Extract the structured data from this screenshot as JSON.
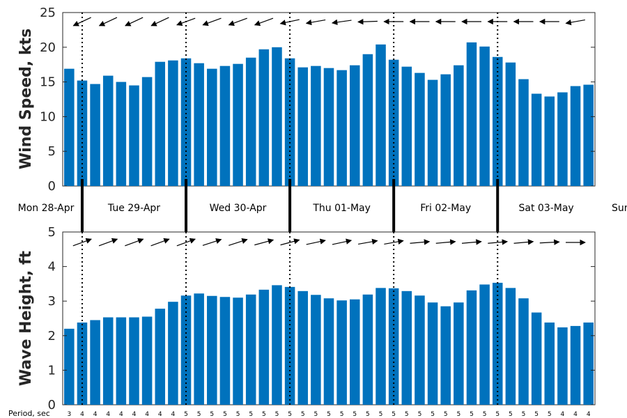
{
  "chart_data": [
    {
      "type": "bar",
      "ylabel": "Wind Speed, kts",
      "ylim": [
        0,
        25
      ],
      "yticks": [
        0,
        5,
        10,
        15,
        20,
        25
      ],
      "bar_color": "#0072BD",
      "values": [
        16.9,
        15.2,
        14.7,
        15.9,
        15.0,
        14.5,
        15.7,
        17.9,
        18.1,
        18.4,
        17.7,
        16.9,
        17.3,
        17.6,
        18.5,
        19.7,
        20.0,
        18.4,
        17.1,
        17.3,
        17.0,
        16.7,
        17.4,
        19.0,
        20.4,
        18.2,
        17.2,
        16.3,
        15.3,
        16.1,
        17.4,
        20.7,
        20.1,
        18.6,
        17.8,
        15.4,
        13.3,
        12.9,
        13.5,
        14.4,
        14.6
      ],
      "arrow_direction": "from east-northeast (arrows point left, turning horizontal later)",
      "arrow_angles_deg": [
        200,
        205,
        205,
        205,
        205,
        205,
        205,
        205,
        205,
        200,
        200,
        200,
        200,
        200,
        200,
        200,
        195,
        192,
        190,
        190,
        190,
        188,
        185,
        182,
        180,
        180,
        180,
        180,
        180,
        180,
        180,
        180,
        180,
        180,
        180,
        180,
        180,
        180,
        185,
        190,
        195
      ]
    },
    {
      "type": "bar",
      "ylabel": "Wave Height, ft",
      "ylim": [
        0,
        5
      ],
      "yticks": [
        0,
        1,
        2,
        3,
        4,
        5
      ],
      "bar_color": "#0072BD",
      "values": [
        2.2,
        2.38,
        2.45,
        2.53,
        2.53,
        2.53,
        2.55,
        2.78,
        2.98,
        3.16,
        3.22,
        3.15,
        3.12,
        3.1,
        3.19,
        3.33,
        3.46,
        3.41,
        3.29,
        3.18,
        3.08,
        3.02,
        3.05,
        3.19,
        3.38,
        3.37,
        3.29,
        3.16,
        2.96,
        2.85,
        2.96,
        3.31,
        3.48,
        3.53,
        3.38,
        3.08,
        2.67,
        2.38,
        2.24,
        2.28,
        2.38
      ],
      "arrow_direction": "toward east-northeast (arrows point right, becoming horizontal)",
      "arrow_angles_deg": [
        20,
        20,
        20,
        20,
        20,
        20,
        20,
        20,
        20,
        20,
        18,
        18,
        18,
        18,
        18,
        15,
        15,
        15,
        15,
        12,
        12,
        12,
        12,
        10,
        10,
        10,
        8,
        5,
        5,
        5,
        5,
        5,
        5,
        5,
        5,
        5,
        5,
        3,
        0,
        0,
        0
      ]
    }
  ],
  "days": [
    "Mon 28-Apr",
    "Tue 29-Apr",
    "Wed 30-Apr",
    "Thu 01-May",
    "Fri 02-May",
    "Sat 03-May",
    "Sun"
  ],
  "period": {
    "title": "Period, sec",
    "values": [
      3,
      4,
      4,
      4,
      4,
      4,
      4,
      4,
      4,
      5,
      5,
      5,
      5,
      5,
      5,
      5,
      5,
      5,
      5,
      5,
      5,
      5,
      5,
      5,
      5,
      5,
      5,
      5,
      5,
      5,
      5,
      5,
      5,
      5,
      5,
      5,
      5,
      5,
      4,
      4,
      4
    ]
  }
}
